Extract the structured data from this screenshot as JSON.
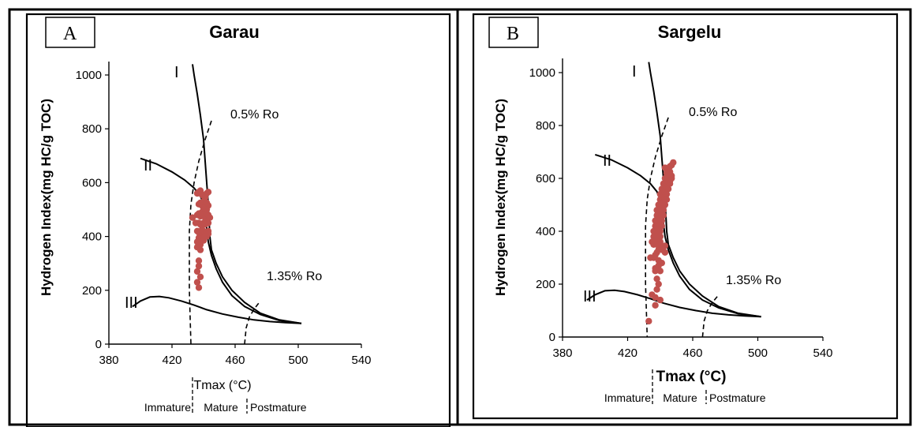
{
  "colors": {
    "points": "#c0504d",
    "frame": "#000000"
  },
  "panels": [
    {
      "letter": "A",
      "title": "Garau",
      "ylabel": "Hydrogen Index(mg HC/g TOC)",
      "xlabel": "Tmax (°C)",
      "maturity_labels": [
        "Immature",
        "Mature",
        "Postmature"
      ],
      "ro_labels": [
        "0.5% Ro",
        "1.35% Ro"
      ],
      "kerogen_labels": [
        "I",
        "II",
        "III"
      ]
    },
    {
      "letter": "B",
      "title": "Sargelu",
      "ylabel": "Hydrogen Index(mg HC/g TOC)",
      "xlabel": "Tmax (°C)",
      "maturity_labels": [
        "Immature",
        "Mature",
        "Postmature"
      ],
      "ro_labels": [
        "0.5% Ro",
        "1.35% Ro"
      ],
      "kerogen_labels": [
        "I",
        "II",
        "III"
      ]
    }
  ],
  "chart_data": [
    {
      "type": "scatter",
      "title": "Garau",
      "xlabel": "Tmax (°C)",
      "ylabel": "Hydrogen Index(mg HC/g TOC)",
      "xlim": [
        380,
        540
      ],
      "ylim": [
        0,
        1000
      ],
      "x_ticks": [
        380,
        420,
        460,
        500,
        540
      ],
      "y_ticks": [
        0,
        200,
        400,
        600,
        800,
        1000
      ],
      "series": [
        {
          "x": [
            436,
            437,
            438,
            439,
            440,
            441,
            442,
            443,
            437,
            438,
            439,
            440,
            441,
            442,
            443,
            436,
            437,
            438,
            439,
            440,
            441,
            442,
            443,
            444,
            437,
            438,
            439,
            440,
            441,
            442,
            443,
            436,
            437,
            438,
            439,
            440,
            441,
            442,
            443,
            437,
            438,
            440,
            442,
            436,
            437,
            438,
            440,
            433,
            435,
            437,
            437,
            436,
            438,
            436,
            437,
            436,
            438,
            441,
            443,
            440,
            442
          ],
          "y": [
            560,
            565,
            570,
            555,
            550,
            545,
            560,
            565,
            520,
            525,
            515,
            530,
            520,
            525,
            515,
            480,
            485,
            475,
            490,
            480,
            470,
            485,
            480,
            470,
            450,
            445,
            440,
            450,
            445,
            455,
            450,
            420,
            415,
            410,
            425,
            420,
            410,
            415,
            420,
            395,
            390,
            395,
            400,
            380,
            375,
            370,
            385,
            470,
            450,
            310,
            290,
            270,
            250,
            230,
            210,
            360,
            350,
            400,
            410,
            505,
            500
          ]
        }
      ],
      "guide_curves": [
        {
          "label": "I",
          "x": [
            433,
            434,
            436,
            438,
            440,
            441,
            442,
            443,
            443.5,
            444,
            445,
            448,
            452,
            458,
            466,
            476,
            488,
            502
          ],
          "y": [
            1040,
            1000,
            930,
            850,
            760,
            680,
            600,
            520,
            460,
            400,
            350,
            300,
            250,
            200,
            155,
            115,
            90,
            77
          ]
        },
        {
          "label": "II",
          "x": [
            400,
            410,
            420,
            428,
            434,
            438,
            440,
            441,
            442,
            443,
            445,
            448,
            452,
            458,
            466,
            476,
            488,
            502
          ],
          "y": [
            690,
            670,
            640,
            610,
            580,
            550,
            520,
            480,
            430,
            380,
            330,
            280,
            230,
            180,
            140,
            110,
            88,
            77
          ]
        },
        {
          "label": "III",
          "x": [
            395,
            400,
            406,
            412,
            418,
            426,
            434,
            442,
            452,
            462,
            472,
            482,
            492,
            502
          ],
          "y": [
            140,
            160,
            175,
            177,
            172,
            160,
            145,
            128,
            112,
            100,
            90,
            84,
            80,
            77
          ]
        }
      ],
      "ro_curves": [
        {
          "label": "0.5% Ro",
          "x": [
            445,
            441,
            437,
            434,
            432,
            431,
            431,
            432
          ],
          "y": [
            830,
            760,
            680,
            600,
            520,
            420,
            200,
            0
          ]
        },
        {
          "label": "1.35% Ro",
          "x": [
            466,
            467,
            469,
            472,
            476
          ],
          "y": [
            0,
            60,
            100,
            130,
            160
          ]
        }
      ]
    },
    {
      "type": "scatter",
      "title": "Sargelu",
      "xlabel": "Tmax (°C)",
      "ylabel": "Hydrogen Index(mg HC/g TOC)",
      "xlim": [
        380,
        540
      ],
      "ylim": [
        0,
        1000
      ],
      "x_ticks": [
        380,
        420,
        460,
        500,
        540
      ],
      "y_ticks": [
        0,
        200,
        400,
        600,
        800,
        1000
      ],
      "series": [
        {
          "x": [
            443,
            444,
            445,
            446,
            447,
            448,
            444,
            445,
            446,
            447,
            443,
            444,
            445,
            446,
            447,
            442,
            443,
            444,
            445,
            446,
            441,
            442,
            443,
            444,
            445,
            440,
            441,
            442,
            443,
            444,
            440,
            441,
            442,
            443,
            444,
            439,
            440,
            441,
            442,
            443,
            438,
            439,
            440,
            441,
            442,
            438,
            439,
            440,
            441,
            442,
            437,
            438,
            439,
            440,
            441,
            437,
            438,
            439,
            440,
            441,
            436,
            437,
            438,
            439,
            440,
            436,
            437,
            438,
            439,
            440,
            443,
            441,
            440,
            439,
            438,
            437,
            435,
            436,
            438,
            439,
            436,
            437,
            441,
            438,
            443,
            439,
            434,
            438,
            442,
            435,
            437,
            440,
            433,
            437,
            439,
            441,
            437,
            440
          ],
          "y": [
            640,
            635,
            630,
            645,
            650,
            660,
            620,
            615,
            625,
            610,
            600,
            595,
            605,
            590,
            600,
            580,
            575,
            570,
            585,
            580,
            560,
            555,
            550,
            565,
            560,
            540,
            535,
            530,
            545,
            540,
            520,
            515,
            510,
            525,
            520,
            500,
            495,
            490,
            505,
            500,
            480,
            475,
            470,
            485,
            480,
            460,
            455,
            450,
            465,
            460,
            440,
            435,
            430,
            445,
            440,
            420,
            415,
            410,
            425,
            420,
            400,
            395,
            390,
            405,
            400,
            380,
            375,
            370,
            385,
            380,
            345,
            340,
            360,
            330,
            320,
            310,
            360,
            350,
            350,
            290,
            300,
            250,
            330,
            220,
            320,
            200,
            300,
            180,
            340,
            160,
            150,
            140,
            60,
            120,
            270,
            280,
            260,
            250
          ]
        }
      ],
      "guide_curves": [
        {
          "label": "I",
          "x": [
            433,
            434,
            436,
            438,
            440,
            441,
            442,
            443,
            443.5,
            444,
            445,
            448,
            452,
            458,
            466,
            476,
            488,
            502
          ],
          "y": [
            1040,
            1000,
            930,
            850,
            760,
            680,
            600,
            520,
            460,
            400,
            350,
            300,
            250,
            200,
            155,
            115,
            90,
            77
          ]
        },
        {
          "label": "II",
          "x": [
            400,
            410,
            420,
            428,
            434,
            438,
            440,
            441,
            442,
            443,
            445,
            448,
            452,
            458,
            466,
            476,
            488,
            502
          ],
          "y": [
            690,
            670,
            640,
            610,
            580,
            550,
            520,
            480,
            430,
            380,
            330,
            280,
            230,
            180,
            140,
            110,
            88,
            77
          ]
        },
        {
          "label": "III",
          "x": [
            395,
            400,
            406,
            412,
            418,
            426,
            434,
            442,
            452,
            462,
            472,
            482,
            492,
            502
          ],
          "y": [
            140,
            160,
            175,
            177,
            172,
            160,
            145,
            128,
            112,
            100,
            90,
            84,
            80,
            77
          ]
        }
      ],
      "ro_curves": [
        {
          "label": "0.5% Ro",
          "x": [
            445,
            441,
            437,
            434,
            432,
            431,
            431,
            432
          ],
          "y": [
            830,
            760,
            680,
            600,
            520,
            420,
            200,
            0
          ]
        },
        {
          "label": "1.35% Ro",
          "x": [
            466,
            467,
            469,
            472,
            476
          ],
          "y": [
            0,
            60,
            100,
            130,
            160
          ]
        }
      ]
    }
  ]
}
